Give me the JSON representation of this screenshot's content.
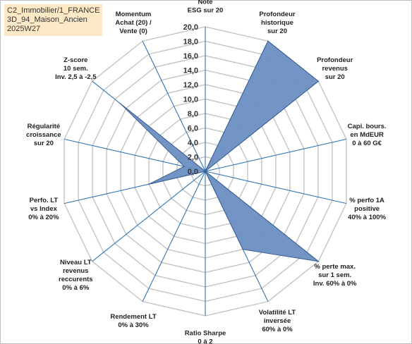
{
  "title_lines": [
    "C2_Immobilier/1_FRANCE",
    "3D_94_Maison_Ancien",
    "2025W27"
  ],
  "chart_data": {
    "type": "radar",
    "rlim": [
      0,
      20
    ],
    "tick_values": [
      0,
      2,
      4,
      6,
      8,
      10,
      12,
      14,
      16,
      18,
      20
    ],
    "tick_labels": [
      "0,0",
      "2,0",
      "4,0",
      "6,0",
      "8,0",
      "10,0",
      "12,0",
      "14,0",
      "16,0",
      "18,0",
      "20,0"
    ],
    "grid": true,
    "fill_color": "#6b8fc2",
    "line_color": "#3a5f92",
    "axis_color": "#2e75b6",
    "grid_color": "#bfbfbf",
    "axes": [
      {
        "label": [
          "Note",
          "ESG sur 20"
        ],
        "value": 0
      },
      {
        "label": [
          "Profondeur",
          "historique",
          "sur 20"
        ],
        "value": 20
      },
      {
        "label": [
          "Profondeur",
          "revenus",
          "sur 20"
        ],
        "value": 20
      },
      {
        "label": [
          "Capi. bours.",
          "en MdEUR",
          "0 à 60 G€"
        ],
        "value": 0
      },
      {
        "label": [
          "% perfo 1A",
          "positive",
          "40% à 100%"
        ],
        "value": 0
      },
      {
        "label": [
          "% perte max.",
          "sur 1 sem.",
          "Inv. 60% à 0%"
        ],
        "value": 20
      },
      {
        "label": [
          "Volatilité LT",
          "inversée",
          "60% à 0%"
        ],
        "value": 12
      },
      {
        "label": [
          "Ratio Sharpe",
          "0 à 2"
        ],
        "value": 0
      },
      {
        "label": [
          "Rendement LT",
          "0% à 30%"
        ],
        "value": 0
      },
      {
        "label": [
          "Niveau LT",
          "revenus",
          "reccurents",
          "0% à 6%"
        ],
        "value": 0
      },
      {
        "label": [
          "Perfo. LT",
          "vs Index",
          "0% à 20%"
        ],
        "value": 8
      },
      {
        "label": [
          "Régularité",
          "croissance",
          "sur 20"
        ],
        "value": 3
      },
      {
        "label": [
          "Z-score",
          "10 sem.",
          "Inv. 2,5 à -2,5"
        ],
        "value": 15
      },
      {
        "label": [
          "Momentum",
          "Achat (20) /",
          "Vente (0)"
        ],
        "value": 0
      }
    ]
  }
}
